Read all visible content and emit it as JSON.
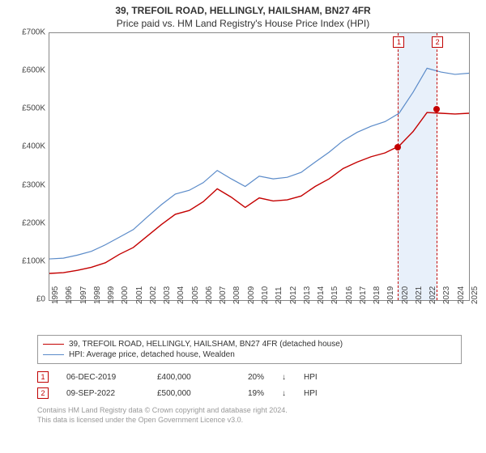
{
  "title": "39, TREFOIL ROAD, HELLINGLY, HAILSHAM, BN27 4FR",
  "subtitle": "Price paid vs. HM Land Registry's House Price Index (HPI)",
  "chart": {
    "type": "line",
    "background_color": "#ffffff",
    "border_color": "#888888",
    "x": {
      "min": 1995,
      "max": 2025,
      "ticks": [
        1995,
        1996,
        1997,
        1998,
        1999,
        2000,
        2001,
        2002,
        2003,
        2004,
        2005,
        2006,
        2007,
        2008,
        2009,
        2010,
        2011,
        2012,
        2013,
        2014,
        2015,
        2016,
        2017,
        2018,
        2019,
        2020,
        2021,
        2022,
        2023,
        2024,
        2025
      ],
      "label_fontsize": 10,
      "label_rotation": -90
    },
    "y": {
      "min": 0,
      "max": 700000,
      "ticks": [
        0,
        100000,
        200000,
        300000,
        400000,
        500000,
        600000,
        700000
      ],
      "tick_labels": [
        "£0",
        "£100K",
        "£200K",
        "£300K",
        "£400K",
        "£500K",
        "£600K",
        "£700K"
      ],
      "label_fontsize": 10
    },
    "shade_band": {
      "xmin": 2019.93,
      "xmax": 2022.69,
      "color": "#e8f0fa"
    },
    "series": [
      {
        "name": "series-property",
        "label": "39, TREFOIL ROAD, HELLINGLY, HAILSHAM, BN27 4FR (detached house)",
        "color": "#c40000",
        "line_width": 1.4,
        "points": [
          [
            1995,
            70000
          ],
          [
            1996,
            72000
          ],
          [
            1997,
            78000
          ],
          [
            1998,
            86000
          ],
          [
            1999,
            98000
          ],
          [
            2000,
            120000
          ],
          [
            2001,
            138000
          ],
          [
            2002,
            168000
          ],
          [
            2003,
            198000
          ],
          [
            2004,
            225000
          ],
          [
            2005,
            235000
          ],
          [
            2006,
            258000
          ],
          [
            2007,
            292000
          ],
          [
            2008,
            270000
          ],
          [
            2009,
            243000
          ],
          [
            2010,
            268000
          ],
          [
            2011,
            260000
          ],
          [
            2012,
            263000
          ],
          [
            2013,
            273000
          ],
          [
            2014,
            298000
          ],
          [
            2015,
            318000
          ],
          [
            2016,
            345000
          ],
          [
            2017,
            362000
          ],
          [
            2018,
            376000
          ],
          [
            2019,
            386000
          ],
          [
            2020,
            404000
          ],
          [
            2021,
            442000
          ],
          [
            2022,
            492000
          ],
          [
            2023,
            490000
          ],
          [
            2024,
            488000
          ],
          [
            2025,
            490000
          ]
        ]
      },
      {
        "name": "series-hpi",
        "label": "HPI: Average price, detached house, Wealden",
        "color": "#5b8bc9",
        "line_width": 1.2,
        "points": [
          [
            1995,
            108000
          ],
          [
            1996,
            110000
          ],
          [
            1997,
            118000
          ],
          [
            1998,
            128000
          ],
          [
            1999,
            145000
          ],
          [
            2000,
            165000
          ],
          [
            2001,
            185000
          ],
          [
            2002,
            218000
          ],
          [
            2003,
            250000
          ],
          [
            2004,
            278000
          ],
          [
            2005,
            288000
          ],
          [
            2006,
            308000
          ],
          [
            2007,
            340000
          ],
          [
            2008,
            318000
          ],
          [
            2009,
            298000
          ],
          [
            2010,
            325000
          ],
          [
            2011,
            318000
          ],
          [
            2012,
            322000
          ],
          [
            2013,
            335000
          ],
          [
            2014,
            362000
          ],
          [
            2015,
            388000
          ],
          [
            2016,
            418000
          ],
          [
            2017,
            440000
          ],
          [
            2018,
            456000
          ],
          [
            2019,
            468000
          ],
          [
            2020,
            490000
          ],
          [
            2021,
            545000
          ],
          [
            2022,
            608000
          ],
          [
            2023,
            598000
          ],
          [
            2024,
            592000
          ],
          [
            2025,
            595000
          ]
        ]
      }
    ],
    "event_markers": [
      {
        "n": "1",
        "x": 2019.93,
        "y": 400000,
        "dot_color": "#c40000"
      },
      {
        "n": "2",
        "x": 2022.69,
        "y": 500000,
        "dot_color": "#c40000"
      }
    ]
  },
  "legend": {
    "items": [
      {
        "color": "#c40000",
        "label": "39, TREFOIL ROAD, HELLINGLY, HAILSHAM, BN27 4FR (detached house)"
      },
      {
        "color": "#5b8bc9",
        "label": "HPI: Average price, detached house, Wealden"
      }
    ]
  },
  "events_table": {
    "rows": [
      {
        "n": "1",
        "date": "06-DEC-2019",
        "price": "£400,000",
        "pct": "20%",
        "arrow": "↓",
        "vs": "HPI"
      },
      {
        "n": "2",
        "date": "09-SEP-2022",
        "price": "£500,000",
        "pct": "19%",
        "arrow": "↓",
        "vs": "HPI"
      }
    ]
  },
  "footnote": {
    "line1": "Contains HM Land Registry data © Crown copyright and database right 2024.",
    "line2": "This data is licensed under the Open Government Licence v3.0."
  }
}
